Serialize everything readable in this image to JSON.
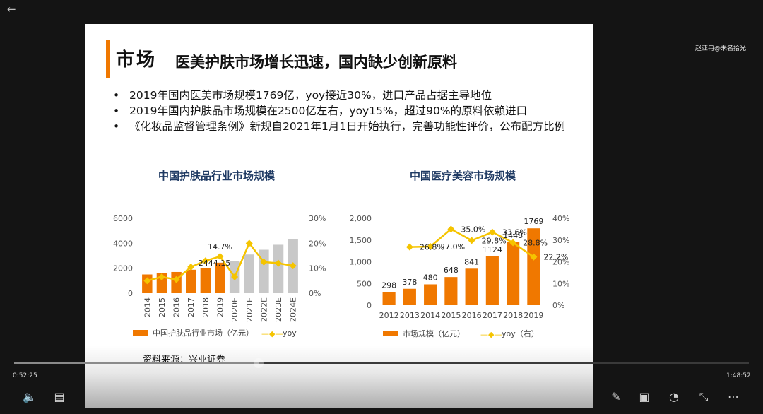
{
  "player": {
    "watermark": "赵亚冉@未名拾光",
    "time_current": "0:52:25",
    "time_total": "1:48:52",
    "progress": 0.333,
    "icons": {
      "back": "back-arrow-icon",
      "volume": "volume-icon",
      "subtitles": "subtitles-icon",
      "annotate": "pen-icon",
      "pip": "picture-in-picture-icon",
      "speed": "speed-icon",
      "collapse": "collapse-icon",
      "more": "more-icon"
    },
    "glyphs": {
      "back": "←",
      "volume": "🔈",
      "subtitles": "▤",
      "annotate": "✎",
      "pip": "▣",
      "speed": "◔",
      "collapse": "⤡",
      "more": "⋯"
    }
  },
  "slide": {
    "title_main": "市场",
    "title_sub": "医美护肤市场增长迅速，国内缺少创新原料",
    "bullet_symbol": "•",
    "bullets": [
      "2019年国内医美市场规模1769亿，yoy接近30%，进口产品占据主导地位",
      "2019年国内护肤品市场规模在2500亿左右，yoy15%，超过90%的原料依赖进口",
      "《化妆品监督管理条例》新规自2021年1月1日开始执行，完善功能性评价，公布配方比例"
    ],
    "source": "资料来源：兴业证券"
  },
  "colors": {
    "bar_actual": "#f07800",
    "bar_estimate": "#c8c8c8",
    "yoy_line": "#f5c400",
    "title_accent": "#f07800",
    "chart_title": "#1f3a63"
  },
  "chart_data": [
    {
      "type": "bar",
      "title": "中国护肤品行业市场规模",
      "categories": [
        "2014",
        "2015",
        "2016",
        "2017",
        "2018",
        "2019",
        "2020E",
        "2021E",
        "2022E",
        "2023E",
        "2024E"
      ],
      "estimate_from_index": 6,
      "series": [
        {
          "name": "中国护肤品行业市场（亿元）",
          "axis": "left",
          "values": [
            1500,
            1620,
            1700,
            1880,
            2020,
            2444.15,
            2560,
            3100,
            3480,
            3880,
            4350
          ]
        },
        {
          "name": "yoy",
          "axis": "right",
          "type": "line",
          "values": [
            0.05,
            0.065,
            0.055,
            0.105,
            0.13,
            0.147,
            0.065,
            0.2,
            0.125,
            0.12,
            0.11
          ]
        }
      ],
      "data_labels": [
        "2444.15",
        "14.7%"
      ],
      "y_left": {
        "min": 0,
        "max": 6000,
        "ticks": [
          "0",
          "2000",
          "4000",
          "6000"
        ]
      },
      "y_right": {
        "min": 0,
        "max": 0.3,
        "ticks": [
          "0%",
          "10%",
          "20%",
          "30%"
        ]
      },
      "legend_marker_line": "—◆—"
    },
    {
      "type": "bar",
      "title": "中国医疗美容市场规模",
      "categories": [
        "2012",
        "2013",
        "2014",
        "2015",
        "2016",
        "2017",
        "2018",
        "2019"
      ],
      "series": [
        {
          "name": "市场规模（亿元）",
          "axis": "left",
          "values": [
            298,
            378,
            480,
            648,
            841,
            1124,
            1448,
            1769
          ]
        },
        {
          "name": "yoy（右）",
          "axis": "right",
          "type": "line",
          "values": [
            null,
            0.268,
            0.27,
            0.35,
            0.298,
            0.336,
            0.288,
            0.222
          ]
        }
      ],
      "bar_labels": [
        "298",
        "378",
        "480",
        "648",
        "841",
        "1124",
        "1448",
        "1769"
      ],
      "yoy_labels": [
        "",
        "26.8%",
        "27.0%",
        "35.0%",
        "29.8%",
        "33.6%",
        "28.8%",
        "22.2%"
      ],
      "y_left": {
        "min": 0,
        "max": 2000,
        "ticks": [
          "0",
          "500",
          "1,000",
          "1,500",
          "2,000"
        ]
      },
      "y_right": {
        "min": 0,
        "max": 0.4,
        "ticks": [
          "0%",
          "10%",
          "20%",
          "30%",
          "40%"
        ]
      },
      "legend_marker_line": "—◆—"
    }
  ]
}
